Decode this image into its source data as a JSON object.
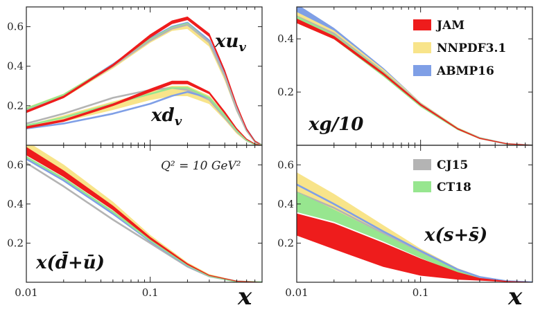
{
  "chart_data": {
    "type": "line",
    "xscale": "log",
    "xlim": [
      0.01,
      0.8
    ],
    "x_tick_labels": [
      "0.01",
      "0.1"
    ],
    "x_tick_values": [
      0.01,
      0.1
    ],
    "xlabel": "x",
    "styles": {
      "JAM": {
        "color": "#ee1c1c"
      },
      "NNPDF3.1": {
        "color": "#f8e48a"
      },
      "ABMP16": {
        "color": "#7f9fe6"
      },
      "CJ15": {
        "color": "#b4b4b4"
      },
      "CT18": {
        "color": "#97e68f"
      }
    },
    "legend": [
      {
        "name": "JAM",
        "color": "#ee1c1c"
      },
      {
        "name": "NNPDF3.1",
        "color": "#f8e48a"
      },
      {
        "name": "ABMP16",
        "color": "#7f9fe6"
      },
      {
        "name": "CJ15",
        "color": "#b4b4b4"
      },
      {
        "name": "CT18",
        "color": "#97e68f"
      }
    ],
    "annotation": "Q² = 10 GeV²",
    "panels": [
      {
        "id": "top-left",
        "labels": [
          {
            "text": "xu",
            "sub": "v"
          },
          {
            "text": "xd",
            "sub": "v"
          }
        ],
        "ylim": [
          0,
          0.7
        ],
        "y_ticks": [
          {
            "v": 0.2,
            "t": "0.2"
          },
          {
            "v": 0.4,
            "t": "0.4"
          },
          {
            "v": 0.6,
            "t": "0.6"
          }
        ],
        "series": [
          {
            "pdf": "NNPDF3.1",
            "kind": "band",
            "x": [
              0.01,
              0.02,
              0.05,
              0.1,
              0.15,
              0.2,
              0.3,
              0.4,
              0.5,
              0.6,
              0.7,
              0.8
            ],
            "lo": [
              0.17,
              0.24,
              0.39,
              0.52,
              0.58,
              0.59,
              0.5,
              0.33,
              0.17,
              0.07,
              0.02,
              0.0
            ],
            "hi": [
              0.19,
              0.26,
              0.41,
              0.54,
              0.6,
              0.61,
              0.52,
              0.35,
              0.18,
              0.08,
              0.02,
              0.0
            ]
          },
          {
            "pdf": "ABMP16",
            "kind": "line",
            "x": [
              0.01,
              0.02,
              0.05,
              0.1,
              0.15,
              0.2,
              0.3,
              0.4,
              0.5,
              0.6,
              0.7,
              0.8
            ],
            "y": [
              0.18,
              0.25,
              0.41,
              0.54,
              0.6,
              0.62,
              0.53,
              0.36,
              0.19,
              0.08,
              0.02,
              0.0
            ]
          },
          {
            "pdf": "CT18",
            "kind": "line",
            "x": [
              0.01,
              0.02,
              0.05,
              0.1,
              0.15,
              0.2,
              0.3,
              0.4,
              0.5,
              0.6,
              0.7,
              0.8
            ],
            "y": [
              0.185,
              0.255,
              0.405,
              0.535,
              0.595,
              0.615,
              0.52,
              0.35,
              0.18,
              0.075,
              0.02,
              0.0
            ]
          },
          {
            "pdf": "CJ15",
            "kind": "line",
            "x": [
              0.01,
              0.02,
              0.05,
              0.1,
              0.15,
              0.2,
              0.3,
              0.4,
              0.5,
              0.6,
              0.7,
              0.8
            ],
            "y": [
              0.175,
              0.245,
              0.4,
              0.53,
              0.59,
              0.61,
              0.52,
              0.35,
              0.18,
              0.075,
              0.02,
              0.0
            ]
          },
          {
            "pdf": "JAM",
            "kind": "band",
            "x": [
              0.01,
              0.02,
              0.05,
              0.1,
              0.15,
              0.2,
              0.3,
              0.4,
              0.5,
              0.6,
              0.7,
              0.8
            ],
            "lo": [
              0.165,
              0.24,
              0.4,
              0.545,
              0.615,
              0.635,
              0.55,
              0.37,
              0.2,
              0.08,
              0.02,
              0.0
            ],
            "hi": [
              0.175,
              0.25,
              0.41,
              0.56,
              0.63,
              0.65,
              0.565,
              0.38,
              0.205,
              0.085,
              0.022,
              0.0
            ]
          },
          {
            "pdf": "NNPDF3.1",
            "kind": "band",
            "x": [
              0.01,
              0.02,
              0.05,
              0.1,
              0.15,
              0.2,
              0.3,
              0.4,
              0.5,
              0.6,
              0.7,
              0.8
            ],
            "lo": [
              0.09,
              0.12,
              0.18,
              0.23,
              0.25,
              0.25,
              0.21,
              0.13,
              0.06,
              0.02,
              0.005,
              0.0
            ],
            "hi": [
              0.1,
              0.15,
              0.22,
              0.27,
              0.3,
              0.3,
              0.25,
              0.16,
              0.08,
              0.03,
              0.006,
              0.0
            ]
          },
          {
            "pdf": "CJ15",
            "kind": "line",
            "x": [
              0.01,
              0.02,
              0.05,
              0.1,
              0.15,
              0.2,
              0.3,
              0.4,
              0.5,
              0.6,
              0.7,
              0.8
            ],
            "y": [
              0.11,
              0.16,
              0.24,
              0.28,
              0.29,
              0.28,
              0.23,
              0.14,
              0.07,
              0.025,
              0.005,
              0.0
            ]
          },
          {
            "pdf": "ABMP16",
            "kind": "line",
            "x": [
              0.01,
              0.02,
              0.05,
              0.1,
              0.15,
              0.2,
              0.3,
              0.4,
              0.5,
              0.6,
              0.7,
              0.8
            ],
            "y": [
              0.085,
              0.11,
              0.16,
              0.21,
              0.25,
              0.27,
              0.24,
              0.15,
              0.075,
              0.028,
              0.005,
              0.0
            ]
          },
          {
            "pdf": "CT18",
            "kind": "line",
            "x": [
              0.01,
              0.02,
              0.05,
              0.1,
              0.15,
              0.2,
              0.3,
              0.4,
              0.5,
              0.6,
              0.7,
              0.8
            ],
            "y": [
              0.1,
              0.14,
              0.21,
              0.26,
              0.29,
              0.29,
              0.24,
              0.15,
              0.075,
              0.027,
              0.005,
              0.0
            ]
          },
          {
            "pdf": "JAM",
            "kind": "band",
            "x": [
              0.01,
              0.02,
              0.05,
              0.1,
              0.15,
              0.2,
              0.3,
              0.4,
              0.5,
              0.6,
              0.7,
              0.8
            ],
            "lo": [
              0.085,
              0.12,
              0.2,
              0.27,
              0.31,
              0.31,
              0.26,
              0.16,
              0.08,
              0.03,
              0.006,
              0.0
            ],
            "hi": [
              0.095,
              0.13,
              0.21,
              0.285,
              0.325,
              0.325,
              0.27,
              0.17,
              0.085,
              0.032,
              0.007,
              0.0
            ]
          }
        ]
      },
      {
        "id": "top-right",
        "labels": [
          {
            "text": "xg/10"
          }
        ],
        "ylim": [
          0,
          0.52
        ],
        "y_ticks": [
          {
            "v": 0.2,
            "t": "0.2"
          },
          {
            "v": 0.4,
            "t": "0.4"
          }
        ],
        "series": [
          {
            "pdf": "ABMP16",
            "kind": "band",
            "x": [
              0.01,
              0.02,
              0.05,
              0.1,
              0.2,
              0.3,
              0.5,
              0.8
            ],
            "lo": [
              0.48,
              0.41,
              0.27,
              0.15,
              0.06,
              0.025,
              0.005,
              0.0
            ],
            "hi": [
              0.53,
              0.44,
              0.29,
              0.16,
              0.065,
              0.03,
              0.006,
              0.0
            ]
          },
          {
            "pdf": "NNPDF3.1",
            "kind": "band",
            "x": [
              0.01,
              0.02,
              0.05,
              0.1,
              0.2,
              0.3,
              0.5,
              0.8
            ],
            "lo": [
              0.46,
              0.4,
              0.26,
              0.145,
              0.058,
              0.024,
              0.004,
              0.0
            ],
            "hi": [
              0.5,
              0.43,
              0.285,
              0.16,
              0.066,
              0.03,
              0.006,
              0.0
            ]
          },
          {
            "pdf": "CJ15",
            "kind": "line",
            "x": [
              0.01,
              0.02,
              0.05,
              0.1,
              0.2,
              0.3,
              0.5,
              0.8
            ],
            "y": [
              0.485,
              0.42,
              0.275,
              0.155,
              0.062,
              0.027,
              0.005,
              0.0
            ]
          },
          {
            "pdf": "CT18",
            "kind": "band",
            "x": [
              0.01,
              0.02,
              0.05,
              0.1,
              0.2,
              0.3,
              0.5,
              0.8
            ],
            "lo": [
              0.465,
              0.4,
              0.26,
              0.145,
              0.058,
              0.025,
              0.004,
              0.0
            ],
            "hi": [
              0.485,
              0.415,
              0.275,
              0.155,
              0.064,
              0.028,
              0.006,
              0.0
            ]
          },
          {
            "pdf": "JAM",
            "kind": "band",
            "x": [
              0.01,
              0.02,
              0.05,
              0.1,
              0.2,
              0.3,
              0.5,
              0.8
            ],
            "lo": [
              0.46,
              0.4,
              0.265,
              0.15,
              0.06,
              0.025,
              0.005,
              0.0
            ],
            "hi": [
              0.475,
              0.41,
              0.272,
              0.155,
              0.063,
              0.027,
              0.006,
              0.0
            ]
          }
        ]
      },
      {
        "id": "bottom-left",
        "labels": [
          {
            "text": "x(d̄+ū)"
          }
        ],
        "ylim": [
          0,
          0.7
        ],
        "y_ticks": [
          {
            "v": 0.2,
            "t": "0.2"
          },
          {
            "v": 0.4,
            "t": "0.4"
          },
          {
            "v": 0.6,
            "t": "0.6"
          }
        ],
        "series": [
          {
            "pdf": "NNPDF3.1",
            "kind": "band",
            "x": [
              0.01,
              0.02,
              0.05,
              0.1,
              0.2,
              0.3,
              0.5,
              0.8
            ],
            "lo": [
              0.66,
              0.54,
              0.37,
              0.22,
              0.09,
              0.035,
              0.004,
              0.0
            ],
            "hi": [
              0.72,
              0.6,
              0.41,
              0.24,
              0.1,
              0.04,
              0.006,
              0.0
            ]
          },
          {
            "pdf": "CJ15",
            "kind": "line",
            "x": [
              0.01,
              0.02,
              0.05,
              0.1,
              0.2,
              0.3,
              0.5,
              0.8
            ],
            "y": [
              0.61,
              0.49,
              0.32,
              0.2,
              0.08,
              0.03,
              0.004,
              0.0
            ]
          },
          {
            "pdf": "ABMP16",
            "kind": "line",
            "x": [
              0.01,
              0.02,
              0.05,
              0.1,
              0.2,
              0.3,
              0.5,
              0.8
            ],
            "y": [
              0.63,
              0.52,
              0.35,
              0.21,
              0.085,
              0.032,
              0.004,
              0.0
            ]
          },
          {
            "pdf": "CT18",
            "kind": "line",
            "x": [
              0.01,
              0.02,
              0.05,
              0.1,
              0.2,
              0.3,
              0.5,
              0.8
            ],
            "y": [
              0.64,
              0.53,
              0.36,
              0.215,
              0.088,
              0.033,
              0.004,
              0.0
            ]
          },
          {
            "pdf": "JAM",
            "kind": "band",
            "x": [
              0.01,
              0.02,
              0.05,
              0.1,
              0.2,
              0.3,
              0.5,
              0.8
            ],
            "lo": [
              0.65,
              0.54,
              0.37,
              0.22,
              0.09,
              0.034,
              0.005,
              0.0
            ],
            "hi": [
              0.69,
              0.57,
              0.39,
              0.23,
              0.095,
              0.036,
              0.006,
              0.0
            ]
          }
        ]
      },
      {
        "id": "bottom-right",
        "labels": [
          {
            "text": "x(s+s̄)"
          }
        ],
        "ylim": [
          0,
          0.7
        ],
        "y_ticks": [
          {
            "v": 0.2,
            "t": "0.2"
          },
          {
            "v": 0.4,
            "t": "0.4"
          },
          {
            "v": 0.6,
            "t": "0.6"
          }
        ],
        "series": [
          {
            "pdf": "NNPDF3.1",
            "kind": "band",
            "x": [
              0.01,
              0.02,
              0.05,
              0.1,
              0.2,
              0.3,
              0.5,
              0.8
            ],
            "lo": [
              0.42,
              0.34,
              0.22,
              0.13,
              0.05,
              0.02,
              0.004,
              0.0
            ],
            "hi": [
              0.56,
              0.45,
              0.29,
              0.17,
              0.07,
              0.03,
              0.006,
              0.0
            ]
          },
          {
            "pdf": "CJ15",
            "kind": "line",
            "x": [
              0.01,
              0.02,
              0.05,
              0.1,
              0.2,
              0.3,
              0.5,
              0.8
            ],
            "y": [
              0.46,
              0.38,
              0.25,
              0.15,
              0.06,
              0.025,
              0.005,
              0.0
            ]
          },
          {
            "pdf": "CT18",
            "kind": "band",
            "x": [
              0.01,
              0.02,
              0.05,
              0.1,
              0.2,
              0.3,
              0.5,
              0.8
            ],
            "lo": [
              0.36,
              0.31,
              0.21,
              0.125,
              0.05,
              0.02,
              0.004,
              0.0
            ],
            "hi": [
              0.46,
              0.37,
              0.245,
              0.15,
              0.06,
              0.025,
              0.005,
              0.0
            ]
          },
          {
            "pdf": "ABMP16",
            "kind": "line",
            "x": [
              0.01,
              0.02,
              0.05,
              0.1,
              0.2,
              0.3,
              0.5,
              0.8
            ],
            "y": [
              0.5,
              0.4,
              0.26,
              0.16,
              0.065,
              0.027,
              0.005,
              0.0
            ]
          },
          {
            "pdf": "JAM",
            "kind": "band",
            "x": [
              0.01,
              0.02,
              0.05,
              0.1,
              0.2,
              0.3,
              0.5,
              0.8
            ],
            "lo": [
              0.24,
              0.17,
              0.08,
              0.035,
              0.015,
              0.01,
              0.003,
              0.0
            ],
            "hi": [
              0.35,
              0.3,
              0.2,
              0.12,
              0.05,
              0.02,
              0.005,
              0.0
            ]
          }
        ]
      }
    ]
  }
}
